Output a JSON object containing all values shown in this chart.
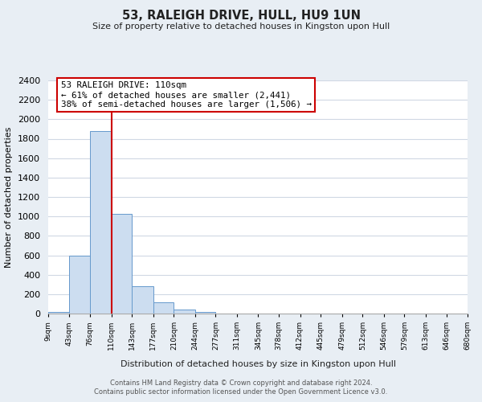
{
  "title": "53, RALEIGH DRIVE, HULL, HU9 1UN",
  "subtitle": "Size of property relative to detached houses in Kingston upon Hull",
  "xlabel": "Distribution of detached houses by size in Kingston upon Hull",
  "ylabel": "Number of detached properties",
  "footer_line1": "Contains HM Land Registry data © Crown copyright and database right 2024.",
  "footer_line2": "Contains public sector information licensed under the Open Government Licence v3.0.",
  "bin_edges": [
    9,
    43,
    76,
    110,
    143,
    177,
    210,
    244,
    277,
    311,
    345,
    378,
    412,
    445,
    479,
    512,
    546,
    579,
    613,
    646,
    680
  ],
  "bin_labels": [
    "9sqm",
    "43sqm",
    "76sqm",
    "110sqm",
    "143sqm",
    "177sqm",
    "210sqm",
    "244sqm",
    "277sqm",
    "311sqm",
    "345sqm",
    "378sqm",
    "412sqm",
    "445sqm",
    "479sqm",
    "512sqm",
    "546sqm",
    "579sqm",
    "613sqm",
    "646sqm",
    "680sqm"
  ],
  "bar_heights": [
    15,
    600,
    1880,
    1030,
    280,
    115,
    45,
    20,
    0,
    0,
    0,
    0,
    0,
    0,
    0,
    0,
    0,
    0,
    0,
    0
  ],
  "bar_color": "#ccddf0",
  "bar_edge_color": "#6699cc",
  "vertical_line_x": 110,
  "vertical_line_color": "#cc0000",
  "ylim": [
    0,
    2400
  ],
  "yticks": [
    0,
    200,
    400,
    600,
    800,
    1000,
    1200,
    1400,
    1600,
    1800,
    2000,
    2200,
    2400
  ],
  "annotation_title": "53 RALEIGH DRIVE: 110sqm",
  "annotation_line1": "← 61% of detached houses are smaller (2,441)",
  "annotation_line2": "38% of semi-detached houses are larger (1,506) →",
  "figure_bg": "#e8eef4",
  "axes_bg": "#ffffff",
  "grid_color": "#d0d8e4"
}
